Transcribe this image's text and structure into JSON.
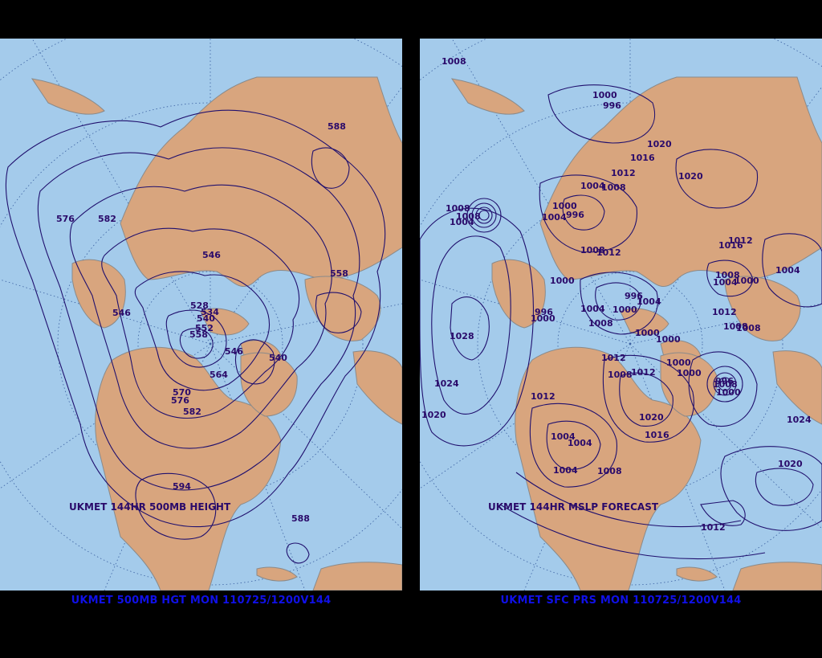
{
  "colors": {
    "ocean": "#a4cbeb",
    "land": "#d8a57e",
    "contour": "#20106e",
    "title": "#1010e8",
    "background": "#000000",
    "graticule": "#3a5fa0"
  },
  "left_panel": {
    "caption": "UKMET 144HR 500MB HEIGHT",
    "footer": "UKMET 500MB HGT MON 110725/1200V144",
    "labels": [
      "576",
      "582",
      "588",
      "546",
      "558",
      "546",
      "528",
      "534",
      "540",
      "552",
      "558",
      "546",
      "540",
      "564",
      "570",
      "576",
      "582",
      "594",
      "588"
    ]
  },
  "right_panel": {
    "caption": "UKMET 144HR MSLP FORECAST",
    "footer": "UKMET SFC PRS MON 110725/1200V144",
    "labels": [
      "1008",
      "1000",
      "996",
      "1020",
      "1016",
      "1012",
      "1020",
      "1004",
      "1008",
      "1000",
      "1008",
      "1004",
      "996",
      "1008",
      "1004",
      "1016",
      "1012",
      "1012",
      "1008",
      "1004",
      "1000",
      "1004",
      "1008",
      "996",
      "1000",
      "1004",
      "996",
      "1004",
      "1000",
      "1000",
      "1012",
      "1008",
      "1008",
      "1028",
      "1000",
      "1008",
      "1012",
      "1000",
      "1008",
      "1000",
      "1000",
      "1024",
      "1012",
      "1008",
      "996",
      "1000",
      "1012",
      "1020",
      "1020",
      "1016",
      "1024",
      "1004",
      "1004",
      "1004",
      "1008",
      "1020",
      "1012"
    ]
  }
}
